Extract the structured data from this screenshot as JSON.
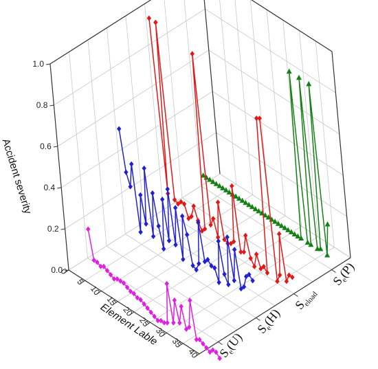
{
  "chart_data": {
    "type": "line",
    "title": "",
    "xlabel": "Element Lable",
    "ylabel": "Accident severity",
    "x_ticks": [
      "0",
      "5",
      "10",
      "15",
      "20",
      "25",
      "30",
      "35",
      "40"
    ],
    "y_ticks": [
      "0.0",
      "0.2",
      "0.4",
      "0.6",
      "0.8",
      "1.0"
    ],
    "ylim": [
      0,
      1.0
    ],
    "xlim": [
      0,
      40
    ],
    "grid": true,
    "categories": [
      {
        "main": "S",
        "sub": "e",
        "tail": "(U)"
      },
      {
        "main": "S",
        "sub": "e",
        "tail": "(H)"
      },
      {
        "main": "S",
        "sub": "eload",
        "tail": ""
      },
      {
        "main": "S",
        "sub": "e",
        "tail": "(P)"
      }
    ],
    "series": [
      {
        "color": "#e020e0",
        "marker": "diamond",
        "x": [
          1,
          2,
          3,
          4,
          5,
          6,
          7,
          8,
          9,
          10,
          11,
          12,
          13,
          14,
          15,
          16,
          17,
          18,
          19,
          20,
          21,
          22,
          23,
          24,
          25,
          26,
          27,
          28,
          29,
          30,
          31,
          32,
          33,
          34,
          35,
          36,
          37,
          38,
          39,
          40
        ],
        "values": [
          0.15,
          0.01,
          0.01,
          0.0,
          0.01,
          0.0,
          -0.01,
          -0.02,
          -0.01,
          -0.01,
          -0.01,
          -0.02,
          -0.03,
          -0.03,
          -0.04,
          -0.04,
          -0.05,
          -0.06,
          -0.07,
          -0.08,
          -0.09,
          -0.08,
          -0.08,
          -0.07,
          0.13,
          -0.05,
          0.07,
          -0.03,
          0.06,
          -0.04,
          -0.02,
          0.12,
          -0.06,
          -0.05,
          -0.06,
          -0.07,
          -0.08,
          -0.06,
          -0.06,
          -0.08
        ]
      },
      {
        "color": "#2020d0",
        "marker": "diamond",
        "x": [
          1,
          2,
          3,
          4,
          5,
          6,
          7,
          8,
          9,
          10,
          11,
          12,
          13,
          14,
          15,
          16,
          17,
          18,
          19,
          20,
          21,
          22,
          23,
          24,
          25,
          26,
          27,
          28,
          29,
          30,
          31,
          32,
          33,
          34,
          35,
          36,
          37,
          38,
          39,
          40
        ],
        "values": [
          0.52,
          0.32,
          0.26,
          0.38,
          0.06,
          0.25,
          0.12,
          0.4,
          0.08,
          0.3,
          0.15,
          0.05,
          0.3,
          0.11,
          0.37,
          0.11,
          0.3,
          0.06,
          0.28,
          0.2,
          0.06,
          0.05,
          0.09,
          0.3,
          0.12,
          0.14,
          0.12,
          0.12,
          0.06,
          0.27,
          0.12,
          0.08,
          0.32,
          0.12,
          0.28,
          0.1,
          0.12,
          0.18,
          0.2,
          0.18
        ]
      },
      {
        "color": "#e01818",
        "marker": "diamond",
        "x": [
          1,
          2,
          3,
          4,
          5,
          6,
          7,
          8,
          9,
          10,
          11,
          12,
          13,
          14,
          15,
          16,
          17,
          18,
          19,
          20,
          21,
          22,
          23,
          24,
          25,
          26,
          27,
          28,
          29,
          30,
          31,
          32,
          33,
          34,
          35,
          36,
          37,
          38,
          39,
          40
        ],
        "values": [
          0.94,
          0.1,
          0.94,
          0.09,
          0.08,
          0.1,
          0.1,
          0.04,
          0.06,
          0.12,
          0.06,
          0.02,
          0.04,
          0.9,
          0.08,
          0.12,
          0.04,
          0.22,
          0.05,
          0.04,
          0.05,
          0.07,
          0.35,
          0.04,
          0.05,
          0.14,
          0.04,
          0.01,
          0.08,
          0.02,
          0.04,
          0.02,
          0.78,
          0.79,
          0.01,
          0.05,
          0.26,
          0.04,
          0.08,
          0.08
        ]
      },
      {
        "color": "#168016",
        "marker": "triangle",
        "x": [
          1,
          2,
          3,
          4,
          5,
          6,
          7,
          8,
          9,
          10,
          11,
          12,
          13,
          14,
          15,
          16,
          17,
          18,
          19,
          20,
          21,
          22,
          23,
          24,
          25,
          26,
          27,
          28,
          29,
          30,
          31,
          32,
          33,
          34,
          35,
          36,
          37,
          38,
          39,
          40
        ],
        "values": [
          0.06,
          0.06,
          0.06,
          0.06,
          0.06,
          0.06,
          0.06,
          0.06,
          0.06,
          0.06,
          0.06,
          0.06,
          0.06,
          0.06,
          0.06,
          0.06,
          0.06,
          0.06,
          0.06,
          0.06,
          0.06,
          0.06,
          0.06,
          0.06,
          0.06,
          0.06,
          0.06,
          0.06,
          0.06,
          0.06,
          0.06,
          0.88,
          0.06,
          0.06,
          0.88,
          0.06,
          0.07,
          0.88,
          0.06,
          0.22
        ]
      }
    ]
  }
}
